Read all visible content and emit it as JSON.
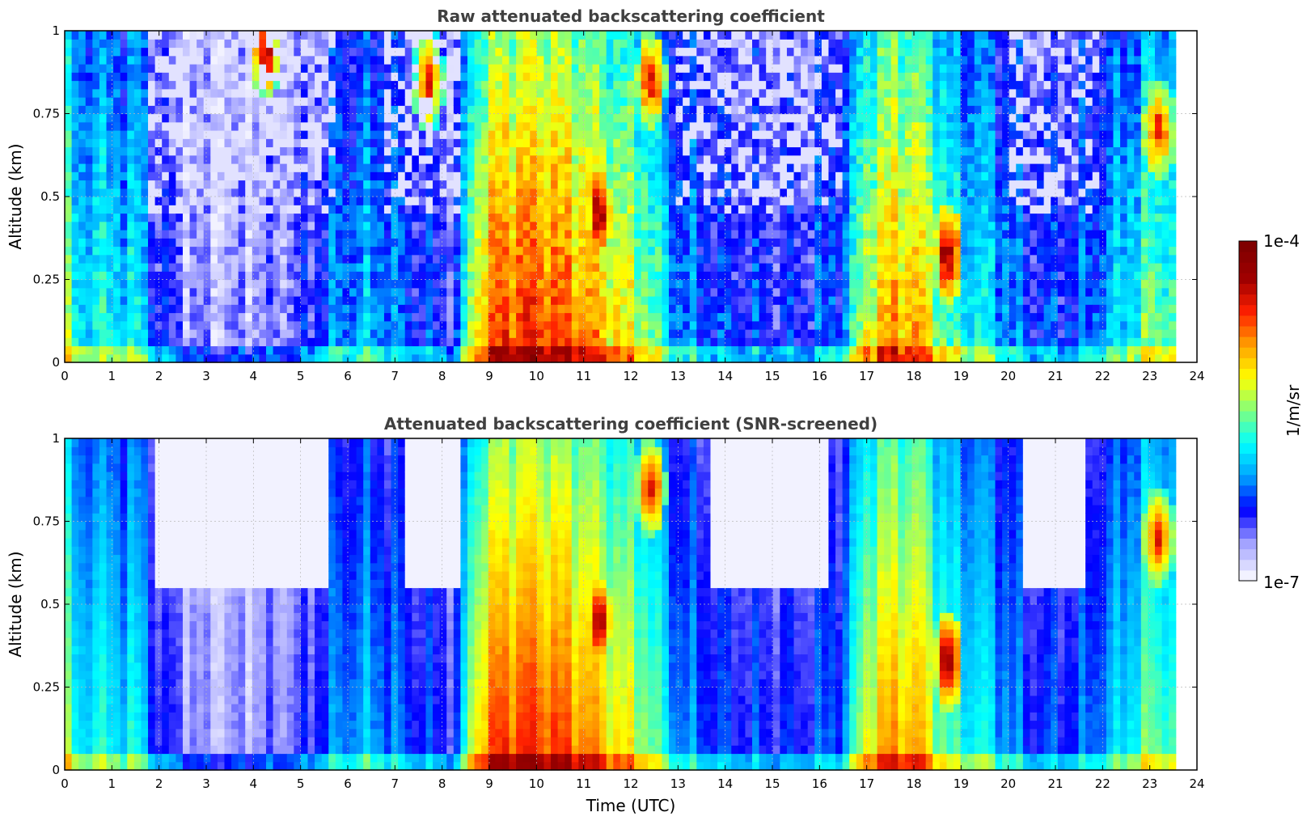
{
  "colors": {
    "jet_stops": [
      "#f2f2ff",
      "#a0a0ff",
      "#0000ff",
      "#00a0ff",
      "#00ffff",
      "#80ff80",
      "#ffff00",
      "#ffa000",
      "#ff2000",
      "#a00000",
      "#800000"
    ],
    "grid": "#bbbbbb",
    "frame": "#000000",
    "title": "#404040"
  },
  "chart_data": [
    {
      "type": "heatmap",
      "title": "Raw attenuated backscattering coefficient",
      "xlabel": "",
      "ylabel": "Altitude (km)",
      "xlim": [
        0,
        24
      ],
      "ylim": [
        0,
        1
      ],
      "data_end_hour": 23.55,
      "xticks": [
        "0",
        "1",
        "2",
        "3",
        "4",
        "5",
        "6",
        "7",
        "8",
        "9",
        "10",
        "11",
        "12",
        "13",
        "14",
        "15",
        "16",
        "17",
        "18",
        "19",
        "20",
        "21",
        "22",
        "23",
        "24"
      ],
      "yticks": [
        "0",
        "0.25",
        "0.5",
        "0.75",
        "1"
      ],
      "ytick_values": [
        0,
        0.25,
        0.5,
        0.75,
        1
      ],
      "grid": true,
      "screened": false,
      "time_profile_intensity": [
        [
          0,
          0.55
        ],
        [
          0.3,
          0.35
        ],
        [
          0.6,
          0.45
        ],
        [
          1.0,
          0.38
        ],
        [
          1.5,
          0.42
        ],
        [
          2.0,
          0.2
        ],
        [
          3.0,
          0.08
        ],
        [
          4.0,
          0.1
        ],
        [
          5.0,
          0.15
        ],
        [
          5.8,
          0.3
        ],
        [
          6.5,
          0.33
        ],
        [
          7.5,
          0.22
        ],
        [
          8.3,
          0.2
        ],
        [
          8.7,
          0.65
        ],
        [
          9.2,
          0.8
        ],
        [
          10.0,
          0.82
        ],
        [
          11.0,
          0.75
        ],
        [
          11.8,
          0.62
        ],
        [
          12.3,
          0.55
        ],
        [
          13.0,
          0.3
        ],
        [
          14.0,
          0.22
        ],
        [
          15.5,
          0.2
        ],
        [
          16.5,
          0.28
        ],
        [
          17.0,
          0.62
        ],
        [
          17.6,
          0.72
        ],
        [
          18.2,
          0.68
        ],
        [
          18.7,
          0.45
        ],
        [
          19.5,
          0.4
        ],
        [
          20.5,
          0.22
        ],
        [
          21.5,
          0.24
        ],
        [
          22.3,
          0.35
        ],
        [
          23.0,
          0.5
        ],
        [
          23.55,
          0.48
        ]
      ],
      "cloud_features": [
        {
          "t": 11.35,
          "alt": 0.45,
          "level": 0.95
        },
        {
          "t": 12.4,
          "alt": 0.85,
          "level": 0.9
        },
        {
          "t": 18.7,
          "alt": 0.33,
          "level": 0.98
        },
        {
          "t": 23.2,
          "alt": 0.7,
          "level": 0.88
        },
        {
          "t": 4.25,
          "alt": 0.95,
          "level": 0.92
        },
        {
          "t": 7.7,
          "alt": 0.85,
          "level": 0.85
        }
      ]
    },
    {
      "type": "heatmap",
      "title": "Attenuated backscattering coefficient (SNR-screened)",
      "xlabel": "Time (UTC)",
      "ylabel": "Altitude (km)",
      "xlim": [
        0,
        24
      ],
      "ylim": [
        0,
        1
      ],
      "data_end_hour": 23.55,
      "xticks": [
        "0",
        "1",
        "2",
        "3",
        "4",
        "5",
        "6",
        "7",
        "8",
        "9",
        "10",
        "11",
        "12",
        "13",
        "14",
        "15",
        "16",
        "17",
        "18",
        "19",
        "20",
        "21",
        "22",
        "23",
        "24"
      ],
      "yticks": [
        "0",
        "0.25",
        "0.5",
        "0.75",
        "1"
      ],
      "ytick_values": [
        0,
        0.25,
        0.5,
        0.75,
        1
      ],
      "grid": true,
      "screened": true
    }
  ],
  "colorbar": {
    "max_label": "1e-4",
    "min_label": "1e-7",
    "units_label": "1/m/sr",
    "levels": 32
  }
}
